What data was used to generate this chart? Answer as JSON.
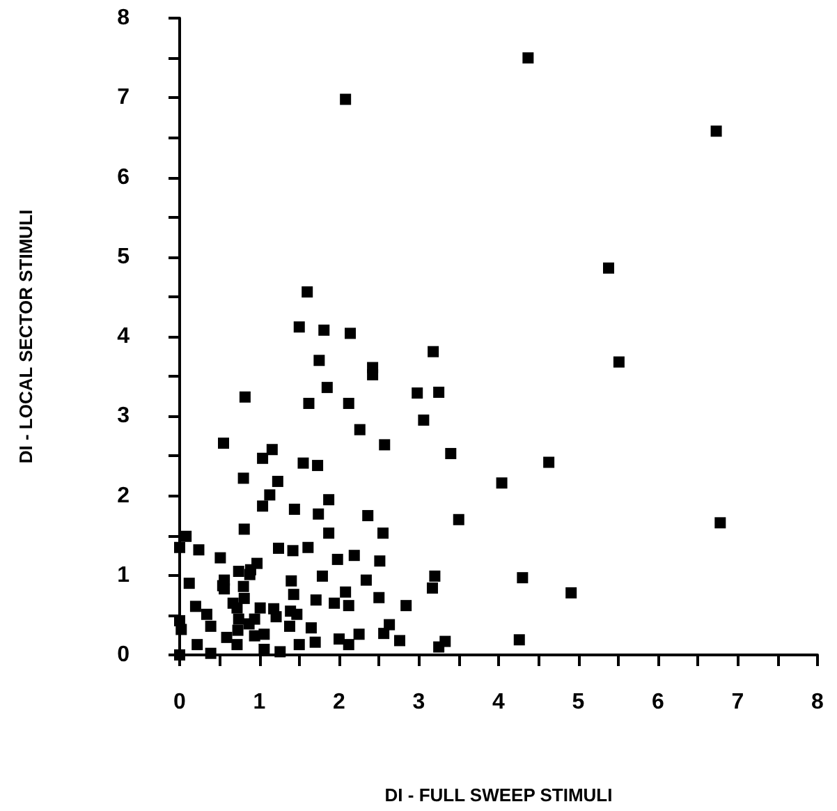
{
  "chart_data": {
    "type": "scatter",
    "xlabel": "DI - FULL SWEEP STIMULI",
    "ylabel": "DI - LOCAL SECTOR STIMULI",
    "xlim": [
      0,
      8
    ],
    "ylim": [
      0,
      8
    ],
    "xticks": [
      0,
      {
        "value": 0.5,
        "label": null
      },
      1,
      {
        "value": 1.5,
        "label": null
      },
      2,
      {
        "value": 2.5,
        "label": null
      },
      3,
      {
        "value": 3.5,
        "label": null
      },
      4,
      {
        "value": 4.5,
        "label": null
      },
      5,
      {
        "value": 5.5,
        "label": null
      },
      6,
      {
        "value": 6.5,
        "label": null
      },
      7,
      {
        "value": 7.5,
        "label": null
      },
      8
    ],
    "yticks": [
      0,
      {
        "value": 0.5,
        "label": null
      },
      1,
      {
        "value": 1.5,
        "label": null
      },
      2,
      {
        "value": 2.5,
        "label": null
      },
      3,
      {
        "value": 3.5,
        "label": null
      },
      4,
      {
        "value": 4.5,
        "label": null
      },
      5,
      {
        "value": 5.5,
        "label": null
      },
      6,
      {
        "value": 6.5,
        "label": null
      },
      7,
      {
        "value": 7.5,
        "label": null
      },
      8
    ],
    "grid": false,
    "marker": "square",
    "series": [
      {
        "color": "#000000",
        "x": [
          4.37,
          2.08,
          6.73,
          5.38,
          1.6,
          1.5,
          1.81,
          2.14,
          3.18,
          1.75,
          2.42,
          2.42,
          5.51,
          0.82,
          1.85,
          1.62,
          2.12,
          2.98,
          3.25,
          3.06,
          2.26,
          0.55,
          2.57,
          3.4,
          1.16,
          1.04,
          4.63,
          1.55,
          1.73,
          0.8,
          1.23,
          4.04,
          1.13,
          1.04,
          1.87,
          1.44,
          1.74,
          2.36,
          3.5,
          6.78,
          0.81,
          1.87,
          2.55,
          0.08,
          0.0,
          0.24,
          0.51,
          1.24,
          1.42,
          1.61,
          1.98,
          2.19,
          2.51,
          0.97,
          0.74,
          0.88,
          0.12,
          0.56,
          1.79,
          1.4,
          2.34,
          3.2,
          4.3,
          0.56,
          0.8,
          1.43,
          2.08,
          3.17,
          4.91,
          2.5,
          1.71,
          1.94,
          2.12,
          2.84,
          0.2,
          0.72,
          1.01,
          1.18,
          1.39,
          0.34,
          0.74,
          0.94,
          1.21,
          1.47,
          0.0,
          0.39,
          0.87,
          1.38,
          0.02,
          0.73,
          1.65,
          2.63,
          0.59,
          0.94,
          1.06,
          2.0,
          2.25,
          2.56,
          2.76,
          0.22,
          0.39,
          0.0,
          0.72,
          1.06,
          1.26,
          1.5,
          1.7,
          2.12,
          3.25,
          3.33,
          4.26,
          0.89,
          0.81,
          0.67,
          0.54
        ],
        "values": [
          7.5,
          6.98,
          6.58,
          4.86,
          4.56,
          4.12,
          4.08,
          4.04,
          3.81,
          3.7,
          3.61,
          3.52,
          3.68,
          3.24,
          3.36,
          3.16,
          3.16,
          3.29,
          3.3,
          2.95,
          2.83,
          2.66,
          2.64,
          2.53,
          2.58,
          2.47,
          2.42,
          2.41,
          2.38,
          2.22,
          2.18,
          2.16,
          2.01,
          1.87,
          1.95,
          1.83,
          1.77,
          1.75,
          1.7,
          1.66,
          1.58,
          1.53,
          1.53,
          1.49,
          1.35,
          1.32,
          1.22,
          1.34,
          1.31,
          1.35,
          1.2,
          1.25,
          1.18,
          1.15,
          1.05,
          1.01,
          0.9,
          0.94,
          0.99,
          0.93,
          0.94,
          0.99,
          0.97,
          0.83,
          0.86,
          0.76,
          0.79,
          0.84,
          0.78,
          0.72,
          0.69,
          0.65,
          0.62,
          0.62,
          0.61,
          0.59,
          0.59,
          0.58,
          0.55,
          0.51,
          0.45,
          0.45,
          0.48,
          0.51,
          0.43,
          0.36,
          0.39,
          0.36,
          0.32,
          0.31,
          0.34,
          0.38,
          0.22,
          0.24,
          0.26,
          0.2,
          0.26,
          0.27,
          0.18,
          0.13,
          0.02,
          0.0,
          0.13,
          0.07,
          0.04,
          0.13,
          0.16,
          0.13,
          0.1,
          0.17,
          0.19,
          1.07,
          0.71,
          0.65,
          0.87
        ]
      }
    ]
  }
}
